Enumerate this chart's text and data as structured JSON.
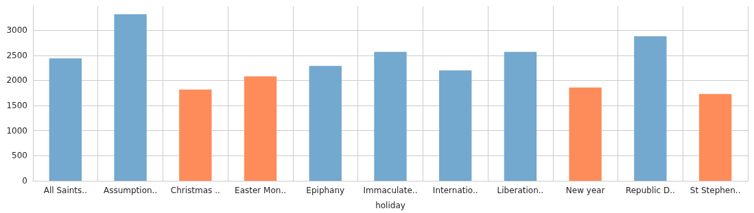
{
  "chart_data": {
    "type": "bar",
    "xlabel": "holiday",
    "categories": [
      "All Saints..",
      "Assumption..",
      "Christmas ..",
      "Easter Mon..",
      "Epiphany",
      "Immaculate..",
      "Internatio..",
      "Liberation..",
      "New year",
      "Republic D..",
      "St Stephen.."
    ],
    "values": [
      2440,
      3320,
      1820,
      2080,
      2290,
      2570,
      2200,
      2570,
      1860,
      2880,
      1730
    ],
    "colors": [
      "#73a8cf",
      "#73a8cf",
      "#fd8c5a",
      "#fd8c5a",
      "#73a8cf",
      "#73a8cf",
      "#73a8cf",
      "#73a8cf",
      "#fd8c5a",
      "#73a8cf",
      "#fd8c5a"
    ],
    "ylim": [
      0,
      3480
    ],
    "yticks": [
      0,
      500,
      1000,
      1500,
      2000,
      2500,
      3000
    ],
    "grid": true
  }
}
